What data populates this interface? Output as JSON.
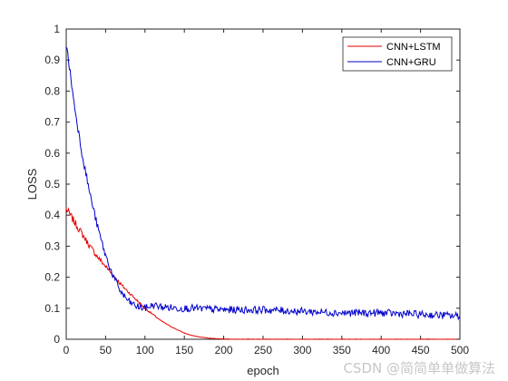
{
  "chart_data": {
    "type": "line",
    "title": "",
    "xlabel": "epoch",
    "ylabel": "LOSS",
    "xlim": [
      0,
      500
    ],
    "ylim": [
      0,
      1
    ],
    "xticks": [
      0,
      50,
      100,
      150,
      200,
      250,
      300,
      350,
      400,
      450,
      500
    ],
    "yticks": [
      0,
      0.1,
      0.2,
      0.3,
      0.4,
      0.5,
      0.6,
      0.7,
      0.8,
      0.9,
      1
    ],
    "grid": false,
    "legend_position": "top-right",
    "series": [
      {
        "name": "CNN+LSTM",
        "color": "#e60000",
        "x": [
          0,
          10,
          20,
          30,
          40,
          50,
          60,
          70,
          80,
          90,
          100,
          110,
          120,
          130,
          140,
          150,
          160,
          170,
          180,
          190,
          200,
          220,
          250,
          300,
          350,
          400,
          450,
          500
        ],
        "y": [
          0.42,
          0.38,
          0.34,
          0.3,
          0.265,
          0.235,
          0.205,
          0.175,
          0.15,
          0.125,
          0.1,
          0.08,
          0.06,
          0.045,
          0.032,
          0.02,
          0.012,
          0.007,
          0.004,
          0.002,
          0.001,
          0.0005,
          0,
          0,
          0,
          0,
          0,
          0
        ]
      },
      {
        "name": "CNN+GRU",
        "color": "#0000cc",
        "x": [
          0,
          5,
          10,
          20,
          30,
          40,
          50,
          60,
          70,
          80,
          90,
          100,
          110,
          120,
          140,
          160,
          200,
          250,
          300,
          350,
          400,
          450,
          500
        ],
        "y": [
          0.95,
          0.86,
          0.76,
          0.6,
          0.47,
          0.36,
          0.27,
          0.2,
          0.15,
          0.12,
          0.105,
          0.1,
          0.11,
          0.105,
          0.1,
          0.1,
          0.095,
          0.095,
          0.09,
          0.085,
          0.085,
          0.08,
          0.075
        ]
      }
    ]
  },
  "watermark": "CSDN @简简单单做算法"
}
